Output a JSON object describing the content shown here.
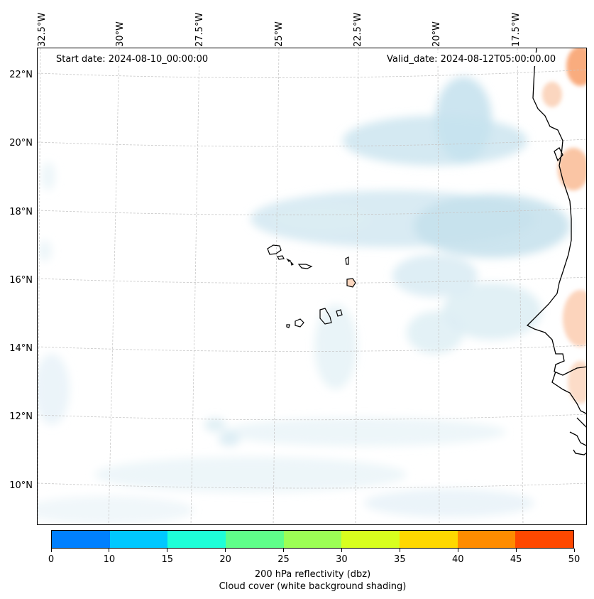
{
  "map": {
    "start_date": "Start date: 2024-08-10_00:00:00",
    "valid_date": "Valid_date: 2024-08-12T05:00:00.00",
    "lon_labels": [
      "32.5°W",
      "30°W",
      "27.5°W",
      "25°W",
      "22.5°W",
      "20°W",
      "17.5°W"
    ],
    "lat_labels": [
      "22°N",
      "20°N",
      "18°N",
      "16°N",
      "14°N",
      "12°N",
      "10°N"
    ],
    "colors": {
      "cloud": "#bfe0ec",
      "warm": "#f7b38a",
      "coast": "#000000",
      "grid": "#c8c8c8"
    }
  },
  "colorbar": {
    "ticks": [
      "0",
      "10",
      "15",
      "20",
      "25",
      "30",
      "35",
      "40",
      "45",
      "50"
    ],
    "colors": [
      "#0080ff",
      "#00c8ff",
      "#1effd8",
      "#5fff8a",
      "#9cff55",
      "#d8ff1e",
      "#ffd800",
      "#ff8c00",
      "#ff4800"
    ],
    "label_line1": "200 hPa reflectivity (dbz)",
    "label_line2": "Cloud cover (white background shading)"
  }
}
